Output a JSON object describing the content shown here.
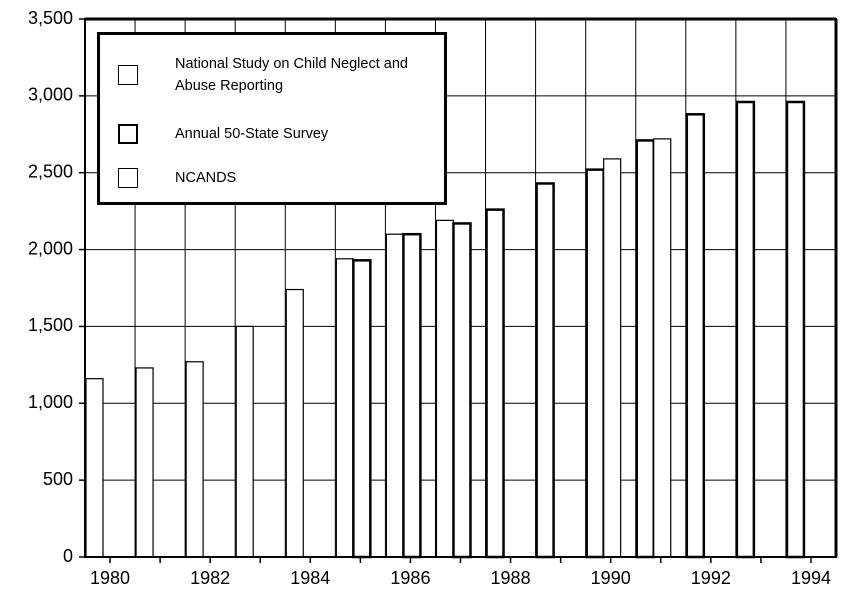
{
  "chart_data": {
    "type": "bar",
    "categories": [
      "1980",
      null,
      "1982",
      null,
      "1984",
      null,
      "1986",
      null,
      "1988",
      null,
      "1990",
      null,
      "1992",
      null,
      "1994"
    ],
    "series": [
      {
        "name": "National Study on Child Neglect and Abuse Reporting",
        "color": "#ffffff",
        "values": [
          1160,
          1230,
          1270,
          1500,
          1740,
          1940,
          2100,
          2190,
          null,
          null,
          null,
          null,
          null,
          null,
          null
        ]
      },
      {
        "name": "Annual 50-State Survey",
        "color": "#ffffff",
        "values": [
          null,
          null,
          null,
          null,
          null,
          1930,
          2100,
          2170,
          2260,
          2430,
          2520,
          2710,
          2880,
          2960,
          2960
        ]
      },
      {
        "name": "NCANDS",
        "color": "#ffffff",
        "values": [
          null,
          null,
          null,
          null,
          null,
          null,
          null,
          null,
          null,
          null,
          2590,
          2720,
          null,
          null,
          null
        ]
      }
    ],
    "ylim": [
      0,
      3500
    ],
    "yticks": [
      0,
      500,
      {
        "value": 1000,
        "label": "1,000"
      },
      {
        "value": 1500,
        "label": "1,500"
      },
      {
        "value": 2000,
        "label": "2,000"
      },
      {
        "value": 2500,
        "label": "2,500"
      },
      {
        "value": 3000,
        "label": "3,000"
      },
      {
        "value": 3500,
        "label": "3,500"
      }
    ],
    "grid": true
  }
}
